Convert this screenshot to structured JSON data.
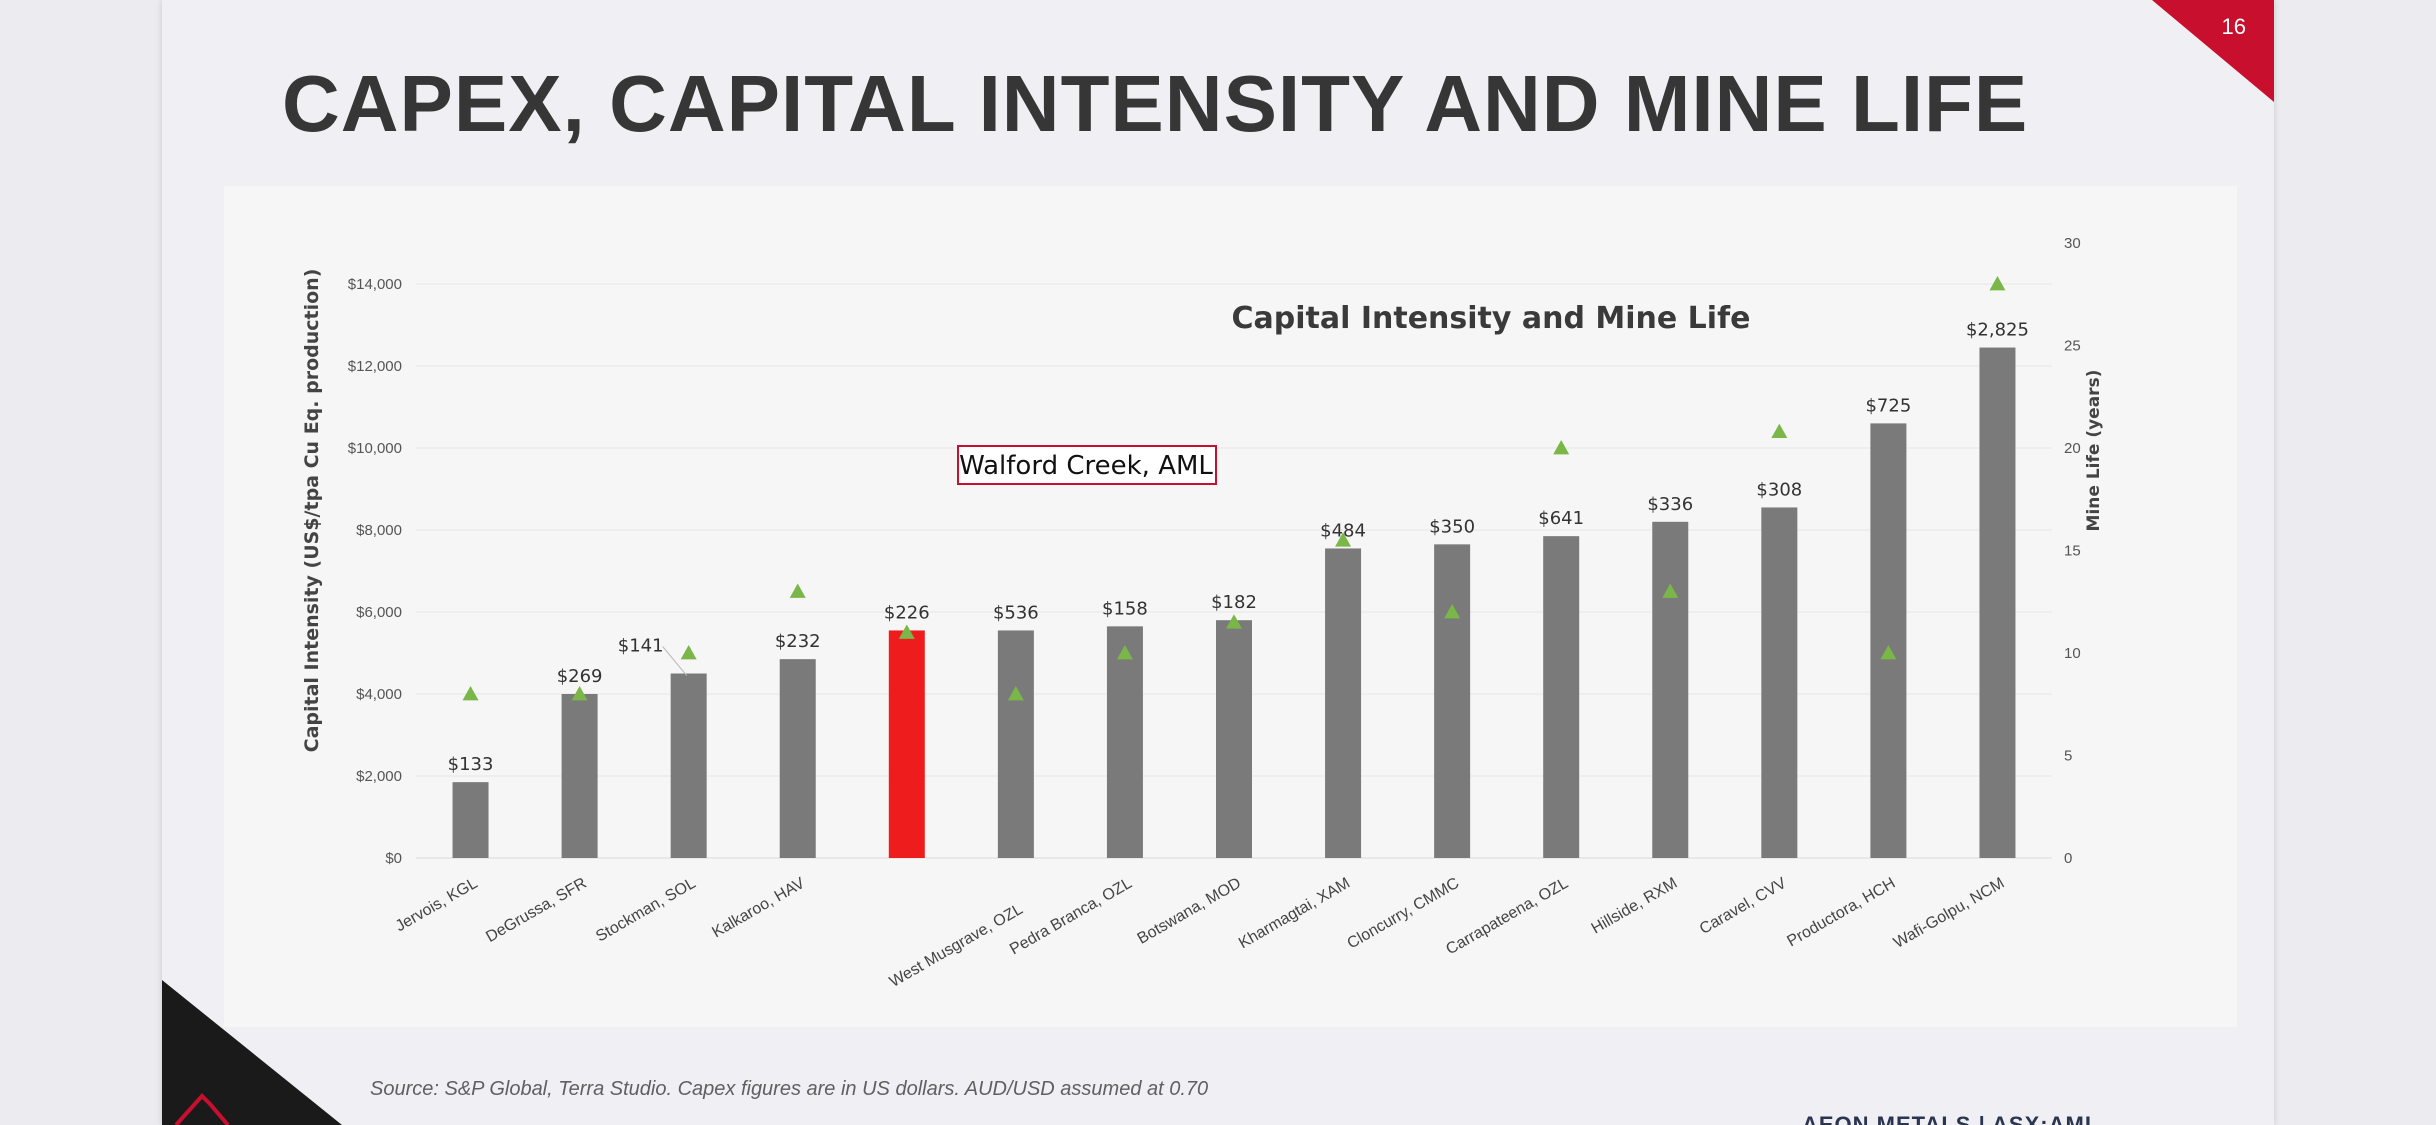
{
  "slide": {
    "page_number": "16",
    "title": "CAPEX, CAPITAL INTENSITY AND MINE LIFE",
    "source": "Source: S&P Global, Terra Studio. Capex figures are in US dollars. AUD/USD assumed at 0.70",
    "footer_brand": "AEON METALS | ASX:AML",
    "accent_color": "#c8102e"
  },
  "chart_data": {
    "type": "bar",
    "title": "Capital Intensity and Mine Life",
    "ylabel": "Capital Intensity (US$/tpa Cu Eq. production)",
    "y2label": "Mine Life (years)",
    "ylim": [
      0,
      15000
    ],
    "y2lim": [
      0,
      30
    ],
    "yticks": [
      "$0",
      "$2,000",
      "$4,000",
      "$6,000",
      "$8,000",
      "$10,000",
      "$12,000",
      "$14,000"
    ],
    "y2ticks": [
      "0",
      "5",
      "10",
      "15",
      "20",
      "25",
      "30"
    ],
    "categories": [
      "Jervois, KGL",
      "DeGrussa, SFR",
      "Stockman, SOL",
      "Kalkaroo, HAV",
      "",
      "West Musgrave, OZL",
      "Pedra Branca, OZL",
      "Botswana, MOD",
      "Kharmagtai, XAM",
      "Cloncurry, CMMC",
      "Carrapateena, OZL",
      "Hillside, RXM",
      "Caravel, CVV",
      "Productora, HCH",
      "Wafi-Golpu, NCM"
    ],
    "series": [
      {
        "type": "bar",
        "values": [
          1850,
          4000,
          4500,
          4850,
          5550,
          5550,
          5650,
          5800,
          7550,
          7650,
          7850,
          8200,
          8550,
          10600,
          12450
        ],
        "labels": [
          "$133",
          "$269",
          "$141",
          "$232",
          "$226",
          "$536",
          "$158",
          "$182",
          "$484",
          "$350",
          "$641",
          "$336",
          "$308",
          "$725",
          "$2,825"
        ],
        "color": "#7a7a7a",
        "highlight_index": 4,
        "highlight_color": "#ee1c1c"
      },
      {
        "type": "scatter",
        "axis": "secondary",
        "marker": "triangle",
        "values": [
          8,
          8,
          10,
          13,
          11,
          8,
          10,
          11.5,
          15.5,
          12,
          20,
          13,
          20.8,
          10,
          28
        ],
        "color": "#7ab648"
      }
    ],
    "annotation": "Walford Creek, AML",
    "annotation_color": "#c8102e",
    "grid": true,
    "legend": "none"
  }
}
